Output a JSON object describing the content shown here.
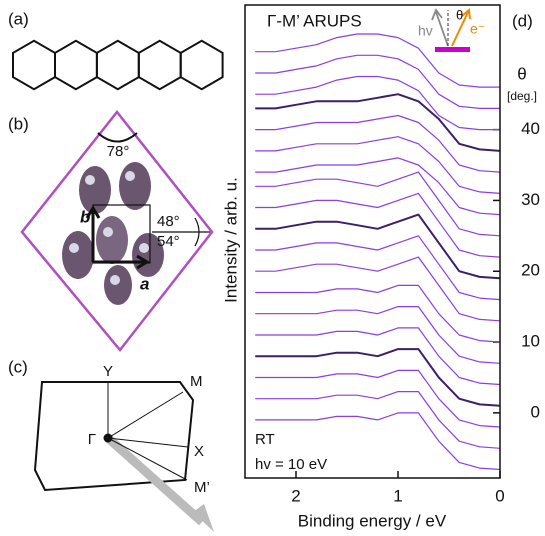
{
  "panel_a": {
    "label": "(a)"
  },
  "panel_b": {
    "label": "(b)",
    "angle_top": "78°",
    "angle_right_1": "48°",
    "angle_right_2": "54°",
    "axis_b": "b",
    "axis_a": "a"
  },
  "panel_c": {
    "label": "(c)",
    "points": [
      "Y",
      "M",
      "Γ",
      "X",
      "M’"
    ]
  },
  "chart_data": {
    "type": "line",
    "panel_label": "(d)",
    "title": "Γ-M’ ARUPS",
    "xlabel": "Binding energy / eV",
    "ylabel": "Intensity / arb. u.",
    "y2label": "θ",
    "y2unit": "[deg.]",
    "annotations": [
      "RT",
      "hv = 10 eV"
    ],
    "inset": {
      "photon": "hv",
      "angle": "θ",
      "electron": "e⁻"
    },
    "x": [
      2.4,
      2.2,
      2.0,
      1.8,
      1.6,
      1.4,
      1.2,
      1.0,
      0.8,
      0.6,
      0.4,
      0.2,
      0.0
    ],
    "xlim": [
      2.5,
      0
    ],
    "xticks": [
      2,
      1,
      0
    ],
    "y2lim": [
      -9.2,
      57.6
    ],
    "y2ticks": [
      0,
      10,
      20,
      30,
      40
    ],
    "series": [
      {
        "color": "#8a3ee8",
        "axis": "y2",
        "values": [
          -1,
          -1,
          -1,
          -1,
          -0.5,
          -0.5,
          -1,
          0,
          0,
          -4,
          -7,
          -7.8,
          -8
        ]
      },
      {
        "color": "#8a3ee8",
        "axis": "y2",
        "values": [
          2,
          2,
          2,
          2,
          2.5,
          2.5,
          2,
          3,
          3,
          -1,
          -4,
          -4.8,
          -5
        ]
      },
      {
        "color": "#8a3ee8",
        "axis": "y2",
        "values": [
          5,
          5,
          5,
          5,
          5.5,
          5.5,
          5,
          6,
          6,
          2,
          -1,
          -1.8,
          -2
        ]
      },
      {
        "color": "#3d1f66",
        "axis": "y2",
        "values": [
          8,
          8,
          8,
          8,
          8.5,
          8.5,
          8,
          9,
          9,
          5,
          2,
          1.2,
          1
        ]
      },
      {
        "color": "#8a3ee8",
        "axis": "y2",
        "values": [
          11,
          11,
          11,
          11,
          11.5,
          11.5,
          11,
          12,
          12,
          8,
          5,
          4.2,
          4
        ]
      },
      {
        "color": "#8a3ee8",
        "axis": "y2",
        "values": [
          14,
          14,
          14,
          14,
          14.5,
          14.5,
          14,
          15,
          15,
          11,
          8,
          7.2,
          7
        ]
      },
      {
        "color": "#8a3ee8",
        "axis": "y2",
        "values": [
          17,
          17,
          17,
          17,
          17.5,
          17.5,
          17,
          18,
          18,
          14,
          11,
          10.2,
          10
        ]
      },
      {
        "color": "#8a3ee8",
        "axis": "y2",
        "values": [
          20,
          20,
          20.5,
          21,
          21,
          20.5,
          20,
          21,
          22,
          18,
          14,
          13.2,
          13
        ]
      },
      {
        "color": "#8a3ee8",
        "axis": "y2",
        "values": [
          23,
          23,
          23.5,
          24,
          24,
          23.5,
          23,
          24,
          25,
          21,
          17,
          16.2,
          16
        ]
      },
      {
        "color": "#3d1f66",
        "axis": "y2",
        "values": [
          26,
          26,
          26.5,
          27,
          27,
          26.5,
          26,
          27,
          28,
          24,
          20,
          19.2,
          19
        ]
      },
      {
        "color": "#8a3ee8",
        "axis": "y2",
        "values": [
          29,
          29,
          29.5,
          30,
          30,
          29.5,
          29,
          30,
          31,
          27,
          23,
          22.2,
          22
        ]
      },
      {
        "color": "#8a3ee8",
        "axis": "y2",
        "values": [
          32,
          32,
          32.5,
          33,
          33,
          32.5,
          32,
          33,
          34,
          30,
          26,
          25.2,
          25
        ]
      },
      {
        "color": "#8a3ee8",
        "axis": "y2",
        "values": [
          34,
          34,
          34.5,
          35,
          35,
          35,
          35.5,
          36,
          35,
          32.5,
          29,
          28.2,
          28
        ]
      },
      {
        "color": "#8a3ee8",
        "axis": "y2",
        "values": [
          37,
          37,
          37.5,
          38,
          38,
          38,
          38.5,
          39,
          38,
          35.5,
          32,
          31.2,
          31
        ]
      },
      {
        "color": "#8a3ee8",
        "axis": "y2",
        "values": [
          40,
          40,
          40.5,
          41,
          41,
          41,
          41.5,
          42,
          41,
          38.5,
          35,
          34.2,
          34
        ]
      },
      {
        "color": "#3d1f66",
        "axis": "y2",
        "values": [
          43,
          43,
          43.5,
          44,
          44,
          44,
          44.5,
          45,
          44,
          41.5,
          38,
          37.2,
          37
        ]
      },
      {
        "color": "#8a3ee8",
        "axis": "y2",
        "values": [
          45,
          45,
          45.5,
          46,
          47,
          47.5,
          47.5,
          47,
          45.5,
          42,
          40.3,
          40,
          40
        ]
      },
      {
        "color": "#8a3ee8",
        "axis": "y2",
        "values": [
          48,
          48,
          48.5,
          49,
          50,
          50.5,
          50.5,
          50,
          48.5,
          45,
          43.3,
          43,
          43
        ]
      },
      {
        "color": "#8a3ee8",
        "axis": "y2",
        "values": [
          51,
          51,
          51.5,
          52,
          53,
          53.5,
          53.5,
          53,
          51.5,
          48,
          46.3,
          46,
          46
        ]
      }
    ]
  }
}
